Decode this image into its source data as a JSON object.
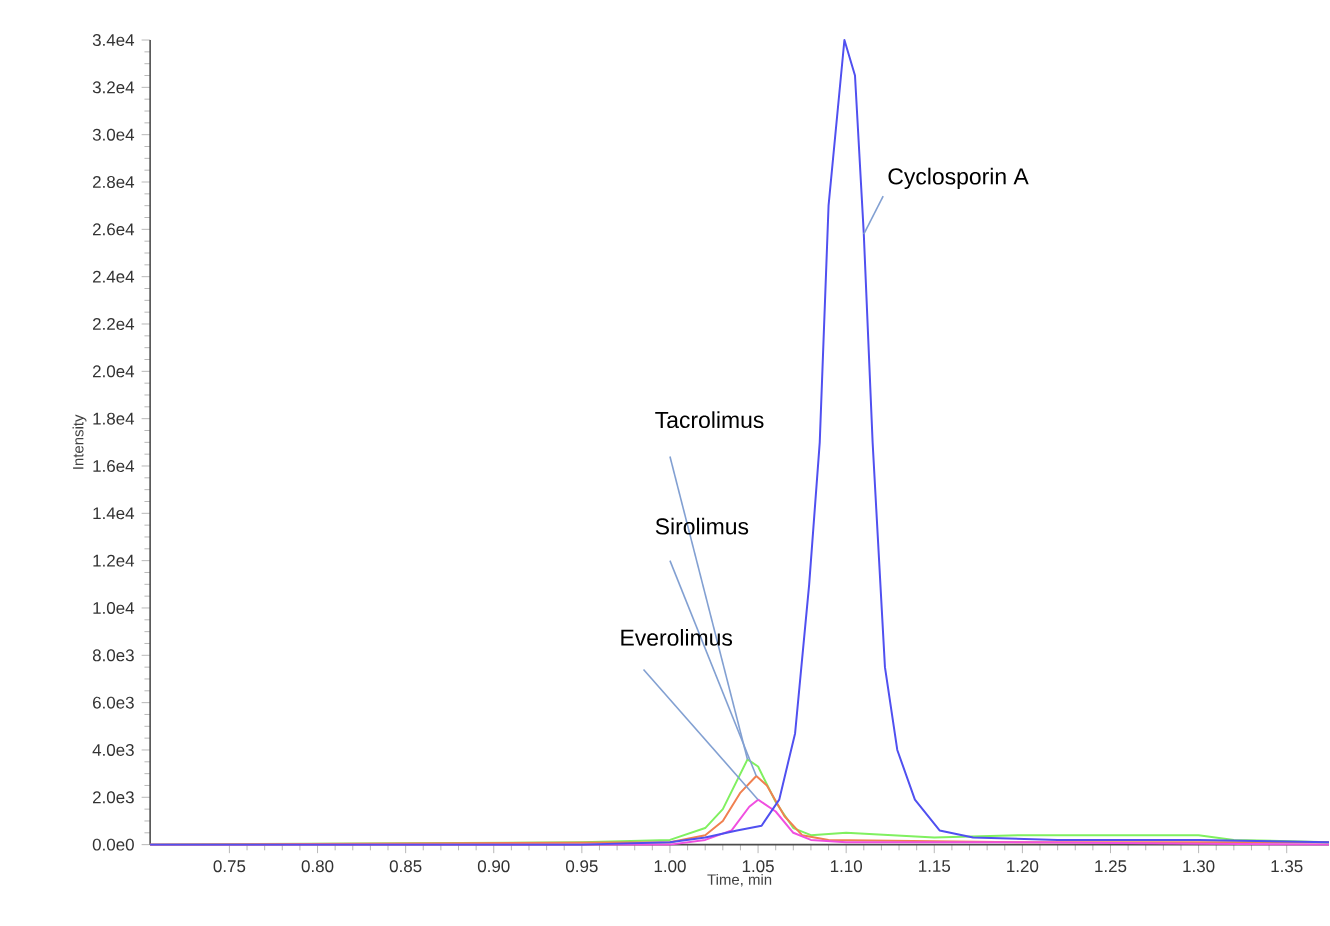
{
  "chart_data": {
    "type": "line",
    "xlabel": "Time, min",
    "ylabel": "Intensity",
    "xlim": [
      0.705,
      1.374
    ],
    "ylim": [
      0,
      34000
    ],
    "xticks": [
      {
        "value": 0.75,
        "label": "0.75"
      },
      {
        "value": 0.8,
        "label": "0.80"
      },
      {
        "value": 0.85,
        "label": "0.85"
      },
      {
        "value": 0.9,
        "label": "0.90"
      },
      {
        "value": 0.95,
        "label": "0.95"
      },
      {
        "value": 1.0,
        "label": "1.00"
      },
      {
        "value": 1.05,
        "label": "1.05"
      },
      {
        "value": 1.1,
        "label": "1.10"
      },
      {
        "value": 1.15,
        "label": "1.15"
      },
      {
        "value": 1.2,
        "label": "1.20"
      },
      {
        "value": 1.25,
        "label": "1.25"
      },
      {
        "value": 1.3,
        "label": "1.30"
      },
      {
        "value": 1.35,
        "label": "1.35"
      }
    ],
    "yticks": [
      {
        "value": 0,
        "label": "0.0e0"
      },
      {
        "value": 2000,
        "label": "2.0e3"
      },
      {
        "value": 4000,
        "label": "4.0e3"
      },
      {
        "value": 6000,
        "label": "6.0e3"
      },
      {
        "value": 8000,
        "label": "8.0e3"
      },
      {
        "value": 10000,
        "label": "1.0e4"
      },
      {
        "value": 12000,
        "label": "1.2e4"
      },
      {
        "value": 14000,
        "label": "1.4e4"
      },
      {
        "value": 16000,
        "label": "1.6e4"
      },
      {
        "value": 18000,
        "label": "1.8e4"
      },
      {
        "value": 20000,
        "label": "2.0e4"
      },
      {
        "value": 22000,
        "label": "2.2e4"
      },
      {
        "value": 24000,
        "label": "2.4e4"
      },
      {
        "value": 26000,
        "label": "2.6e4"
      },
      {
        "value": 28000,
        "label": "2.8e4"
      },
      {
        "value": 30000,
        "label": "3.0e4"
      },
      {
        "value": 32000,
        "label": "3.2e4"
      },
      {
        "value": 34000,
        "label": "3.4e4"
      }
    ],
    "grid": false,
    "marker": "none",
    "line_style": "solid",
    "series": [
      {
        "name": "Cyclosporin A",
        "color": "#5050f0",
        "x": [
          0.705,
          0.95,
          1.0,
          1.02,
          1.038,
          1.052,
          1.062,
          1.071,
          1.079,
          1.085,
          1.09,
          1.099,
          1.105,
          1.11,
          1.115,
          1.122,
          1.129,
          1.139,
          1.153,
          1.172,
          1.22,
          1.3,
          1.374
        ],
        "values": [
          0,
          0,
          100,
          300,
          600,
          800,
          1900,
          4700,
          11000,
          17000,
          27000,
          34000,
          32500,
          25800,
          17000,
          7500,
          4000,
          1900,
          600,
          300,
          200,
          200,
          100
        ]
      },
      {
        "name": "Tacrolimus",
        "color": "#80f060",
        "x": [
          0.705,
          0.95,
          1.0,
          1.02,
          1.03,
          1.044,
          1.05,
          1.06,
          1.07,
          1.08,
          1.1,
          1.15,
          1.2,
          1.25,
          1.3,
          1.32,
          1.374
        ],
        "values": [
          0,
          100,
          200,
          700,
          1500,
          3600,
          3300,
          1800,
          700,
          400,
          500,
          300,
          400,
          400,
          400,
          200,
          100
        ]
      },
      {
        "name": "Sirolimus",
        "color": "#f08050",
        "x": [
          0.705,
          1.0,
          1.02,
          1.03,
          1.04,
          1.049,
          1.055,
          1.065,
          1.075,
          1.09,
          1.2,
          1.374
        ],
        "values": [
          0,
          100,
          400,
          1000,
          2200,
          2900,
          2500,
          1200,
          400,
          200,
          100,
          100
        ]
      },
      {
        "name": "Everolimus",
        "color": "#f050e0",
        "x": [
          0.705,
          1.0,
          1.02,
          1.035,
          1.045,
          1.05,
          1.06,
          1.07,
          1.08,
          1.1,
          1.2,
          1.374
        ],
        "values": [
          0,
          0,
          200,
          600,
          1600,
          1900,
          1400,
          500,
          200,
          100,
          100,
          0
        ]
      }
    ]
  }
}
